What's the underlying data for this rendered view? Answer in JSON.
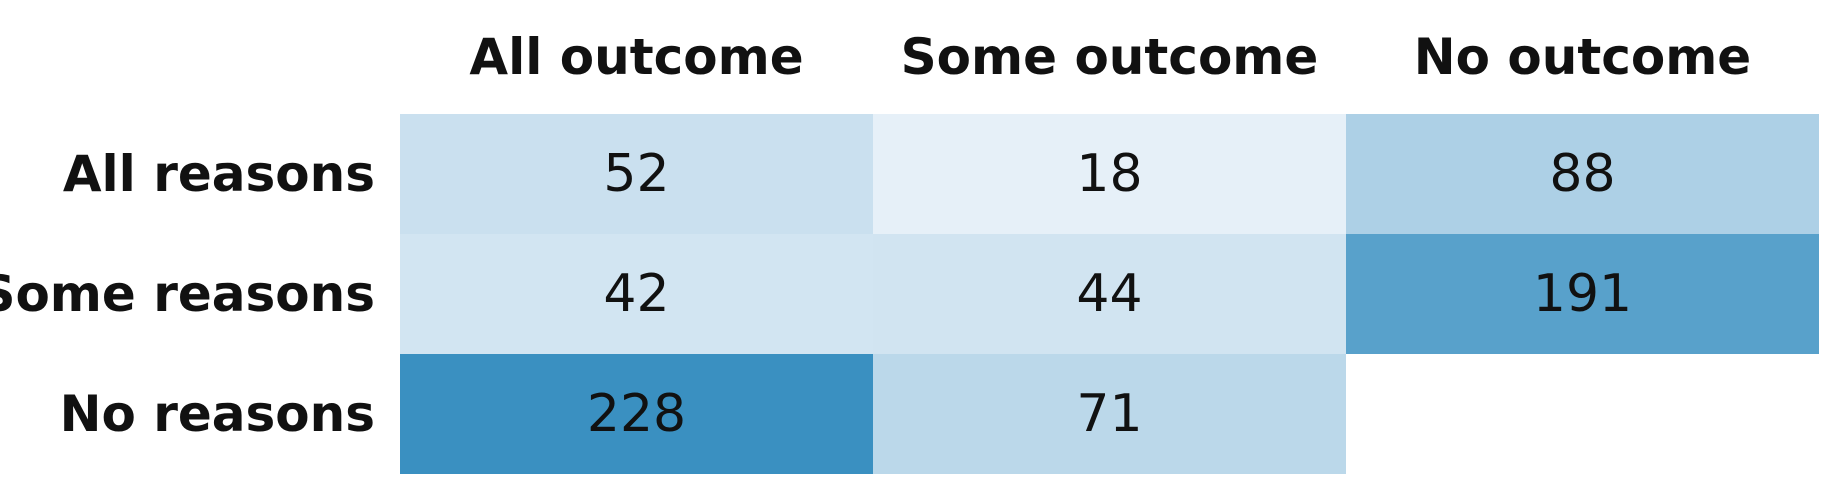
{
  "chart_data": {
    "type": "heatmap",
    "title": "",
    "xlabel": "",
    "ylabel": "",
    "columns": [
      "All outcome",
      "Some outcome",
      "No outcome"
    ],
    "rows": [
      "All reasons",
      "Some reasons",
      "No reasons"
    ],
    "values": [
      [
        52,
        18,
        88
      ],
      [
        42,
        44,
        191
      ],
      [
        228,
        71,
        null
      ]
    ],
    "color_scale": {
      "low": "#e6f0f8",
      "high": "#3a90c1",
      "empty": "#ffffff"
    },
    "legend": "none",
    "grid": false
  }
}
